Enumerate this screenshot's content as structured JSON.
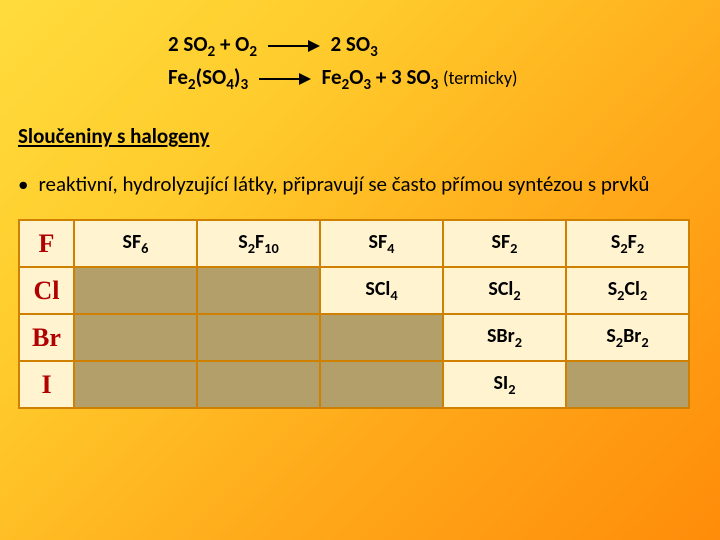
{
  "equations": {
    "eq1": {
      "lhs": "2 SO",
      "lhs_sub1": "2",
      "plus": "  +  O",
      "lhs_sub2": "2",
      "rhs": "   2 SO",
      "rhs_sub": "3"
    },
    "eq2": {
      "lhs": "Fe",
      "s1": "2",
      "mid1": "(SO",
      "s2": "4",
      "mid2": ")",
      "s3": "3",
      "rhs": "   Fe",
      "r1": "2",
      "rhs2": "O",
      "r2": "3",
      "plus": "  +  3 SO",
      "r3": "3",
      "note": " (termicky)"
    }
  },
  "section_title": "Sloučeniny s halogeny",
  "bullet_text": "reaktivní, hydrolyzující látky, připravují se často přímou syntézou s prvků",
  "table": {
    "headers": [
      "F",
      "Cl",
      "Br",
      "I"
    ],
    "rows": [
      [
        "SF₆",
        "S₂F₁₀",
        "SF₄",
        "SF₂",
        "S₂F₂"
      ],
      [
        "",
        "",
        "SCl₄",
        "SCl₂",
        "S₂Cl₂"
      ],
      [
        "",
        "",
        "",
        "SBr₂",
        "S₂Br₂"
      ],
      [
        "",
        "",
        "",
        "SI₂",
        ""
      ]
    ],
    "empty_cells": [
      [
        1,
        0
      ],
      [
        1,
        1
      ],
      [
        2,
        0
      ],
      [
        2,
        1
      ],
      [
        2,
        2
      ],
      [
        3,
        0
      ],
      [
        3,
        1
      ],
      [
        3,
        2
      ],
      [
        3,
        4
      ]
    ]
  },
  "colors": {
    "border": "#d08000",
    "cell_bg": "#fff3d0",
    "empty_bg": "#b39f6a",
    "header_text": "#b00000"
  }
}
